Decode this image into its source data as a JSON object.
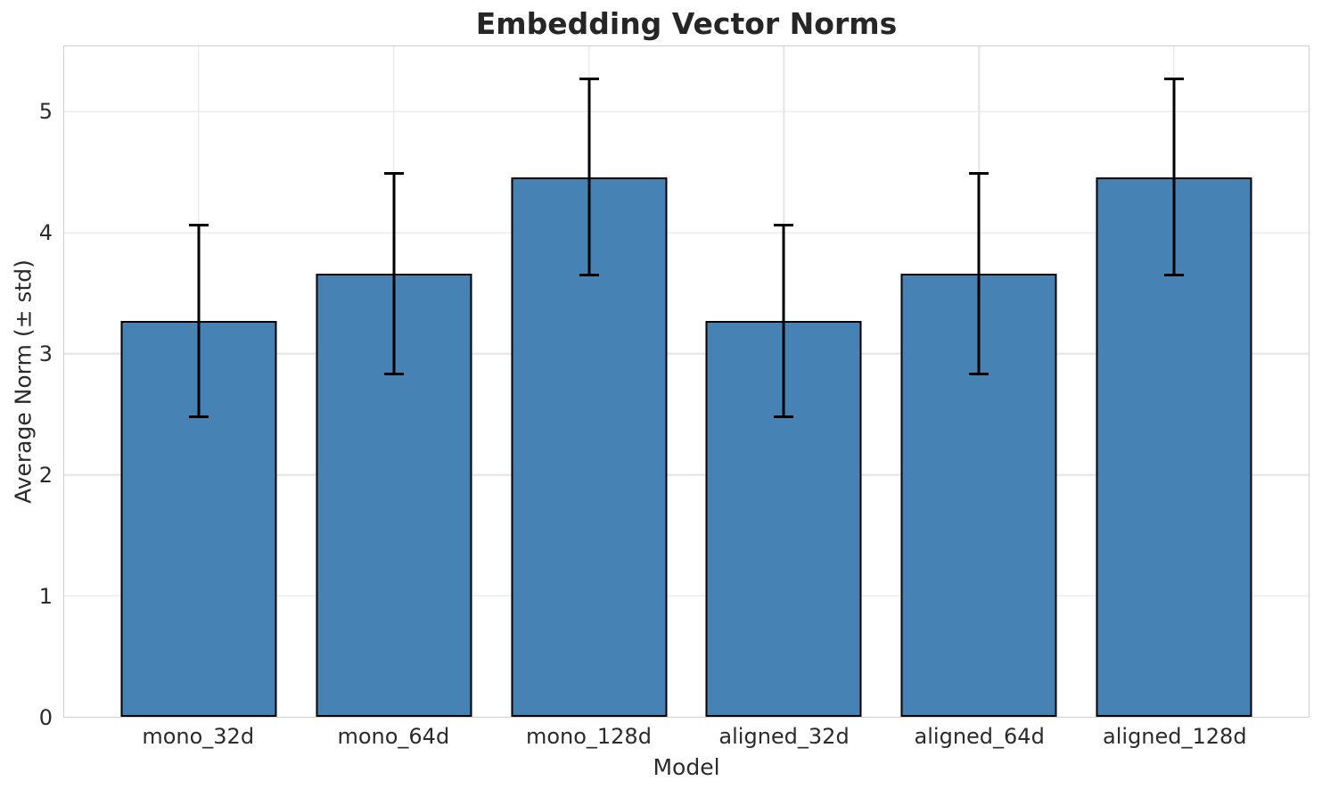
{
  "chart_data": {
    "type": "bar",
    "title": "Embedding Vector Norms",
    "xlabel": "Model",
    "ylabel": "Average Norm (± std)",
    "categories": [
      "mono_32d",
      "mono_64d",
      "mono_128d",
      "aligned_32d",
      "aligned_64d",
      "aligned_128d"
    ],
    "values": [
      3.27,
      3.66,
      4.46,
      3.27,
      3.66,
      4.46
    ],
    "errors": [
      0.79,
      0.83,
      0.81,
      0.79,
      0.83,
      0.81
    ],
    "yticks": [
      0,
      1,
      2,
      3,
      4,
      5
    ],
    "ylim": [
      0,
      5.54
    ],
    "xlim": [
      -0.69,
      5.69
    ],
    "bar_width": 0.8,
    "grid": true,
    "legend": false,
    "colors": {
      "bar_fill": "#4682b4",
      "bar_edge": "#000000",
      "error_bar": "#000000",
      "grid_line": "#e4e4e4",
      "spine": "#cfcfcf",
      "title_text": "#262626",
      "tick_text": "#2b2b2b"
    }
  }
}
